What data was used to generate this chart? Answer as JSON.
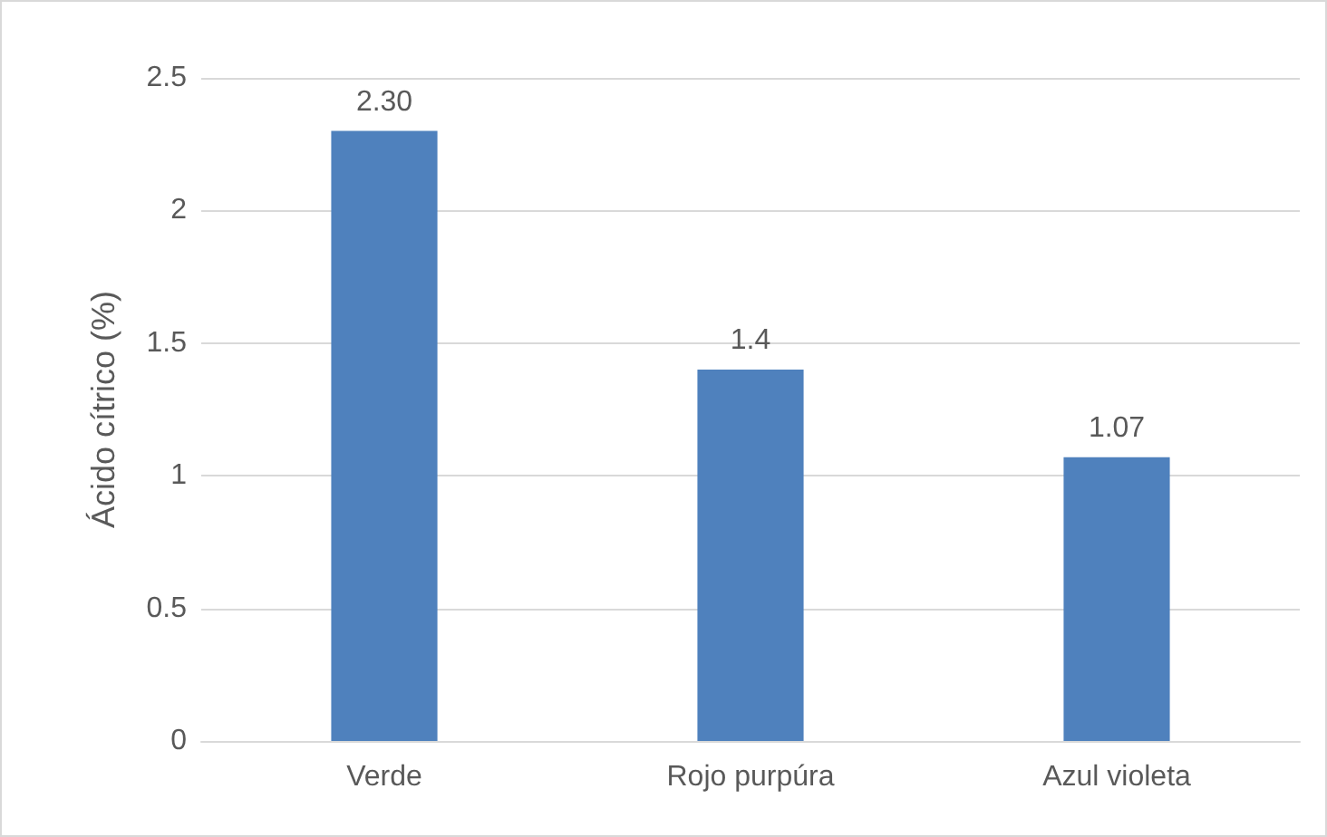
{
  "chart_data": {
    "type": "bar",
    "ylabel": "Ácido cítrico (%)",
    "categories": [
      "Verde",
      "Rojo purpúra",
      "Azul violeta"
    ],
    "values": [
      2.3,
      1.4,
      1.07
    ],
    "value_labels": [
      "2.30",
      "1.4",
      "1.07"
    ],
    "color": "#4f81bd",
    "ylim": [
      0,
      2.5
    ],
    "yticks": [
      0,
      0.5,
      1,
      1.5,
      2,
      2.5
    ],
    "grid": "y"
  }
}
